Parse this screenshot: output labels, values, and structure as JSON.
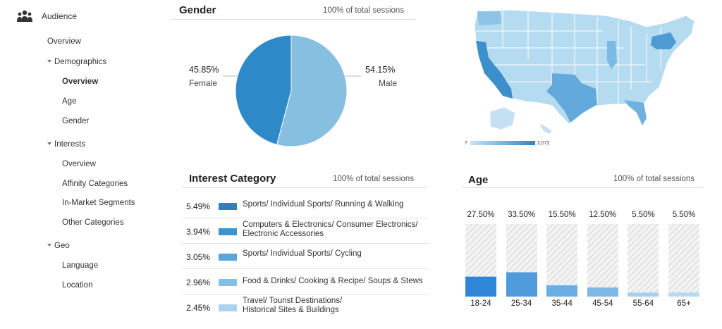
{
  "sidebar": {
    "title": "Audience",
    "items": [
      {
        "label": "Overview"
      },
      {
        "label": "Demographics"
      },
      {
        "label": "Overview"
      },
      {
        "label": "Age"
      },
      {
        "label": "Gender"
      },
      {
        "label": "Interests"
      },
      {
        "label": "Overview"
      },
      {
        "label": "Affinity Categories"
      },
      {
        "label": "In-Market Segments"
      },
      {
        "label": "Other Categories"
      },
      {
        "label": "Geo"
      },
      {
        "label": "Language"
      },
      {
        "label": "Location"
      }
    ]
  },
  "gender": {
    "title": "Gender",
    "note": "100% of total sessions",
    "female_pct": "45.85%",
    "female_label": "Female",
    "male_pct": "54.15%",
    "male_label": "Male"
  },
  "map": {
    "legend_min": "7",
    "legend_max": "2,072",
    "colors": {
      "low": "#c6e2f2",
      "high": "#2e86c9"
    }
  },
  "interest": {
    "title": "Interest Category",
    "note": "100% of total sessions",
    "rows": [
      {
        "pct": "5.49%",
        "label": "Sports/ Individual Sports/ Running & Walking",
        "color": "#2f7fc1"
      },
      {
        "pct": "3.94%",
        "label": "Computers & Electronics/ Consumer Electronics/ Electronic Accessories",
        "color": "#3f92cf"
      },
      {
        "pct": "3.05%",
        "label": "Sports/ Individual Sports/ Cycling",
        "color": "#5aa5d9"
      },
      {
        "pct": "2.96%",
        "label": "Food & Drinks/ Cooking & Recipe/ Soups & Stews",
        "color": "#84bfe5"
      },
      {
        "pct": "2.45%",
        "label": "Travel/ Tourist Destinations/ Historical Sites & Buildings",
        "color": "#abd3ee"
      }
    ]
  },
  "age": {
    "title": "Age",
    "note": "100% of total sessions"
  },
  "chart_data": [
    {
      "type": "pie",
      "title": "Gender",
      "categories": [
        "Female",
        "Male"
      ],
      "values": [
        45.85,
        54.15
      ],
      "colors": [
        "#2d89c8",
        "#86bfe0"
      ]
    },
    {
      "type": "bar",
      "title": "Interest Category",
      "categories": [
        "Sports/ Individual Sports/ Running & Walking",
        "Computers & Electronics/ Consumer Electronics/ Electronic Accessories",
        "Sports/ Individual Sports/ Cycling",
        "Food & Drinks/ Cooking & Recipe/ Soups & Stews",
        "Travel/ Tourist Destinations/ Historical Sites & Buildings"
      ],
      "values": [
        5.49,
        3.94,
        3.05,
        2.96,
        2.45
      ]
    },
    {
      "type": "bar",
      "title": "Age",
      "categories": [
        "18-24",
        "25-34",
        "35-44",
        "45-54",
        "55-64",
        "65+"
      ],
      "values": [
        27.5,
        33.5,
        15.5,
        12.5,
        5.5,
        5.5
      ],
      "labels": [
        "27.50%",
        "33.50%",
        "15.50%",
        "12.50%",
        "5.50%",
        "5.50%"
      ],
      "ylim": [
        0,
        100
      ],
      "colors": [
        "#2f86d6",
        "#4f9bdb",
        "#6aaee3",
        "#7fb8e6",
        "#a9cff0",
        "#b9d9f3"
      ]
    }
  ]
}
